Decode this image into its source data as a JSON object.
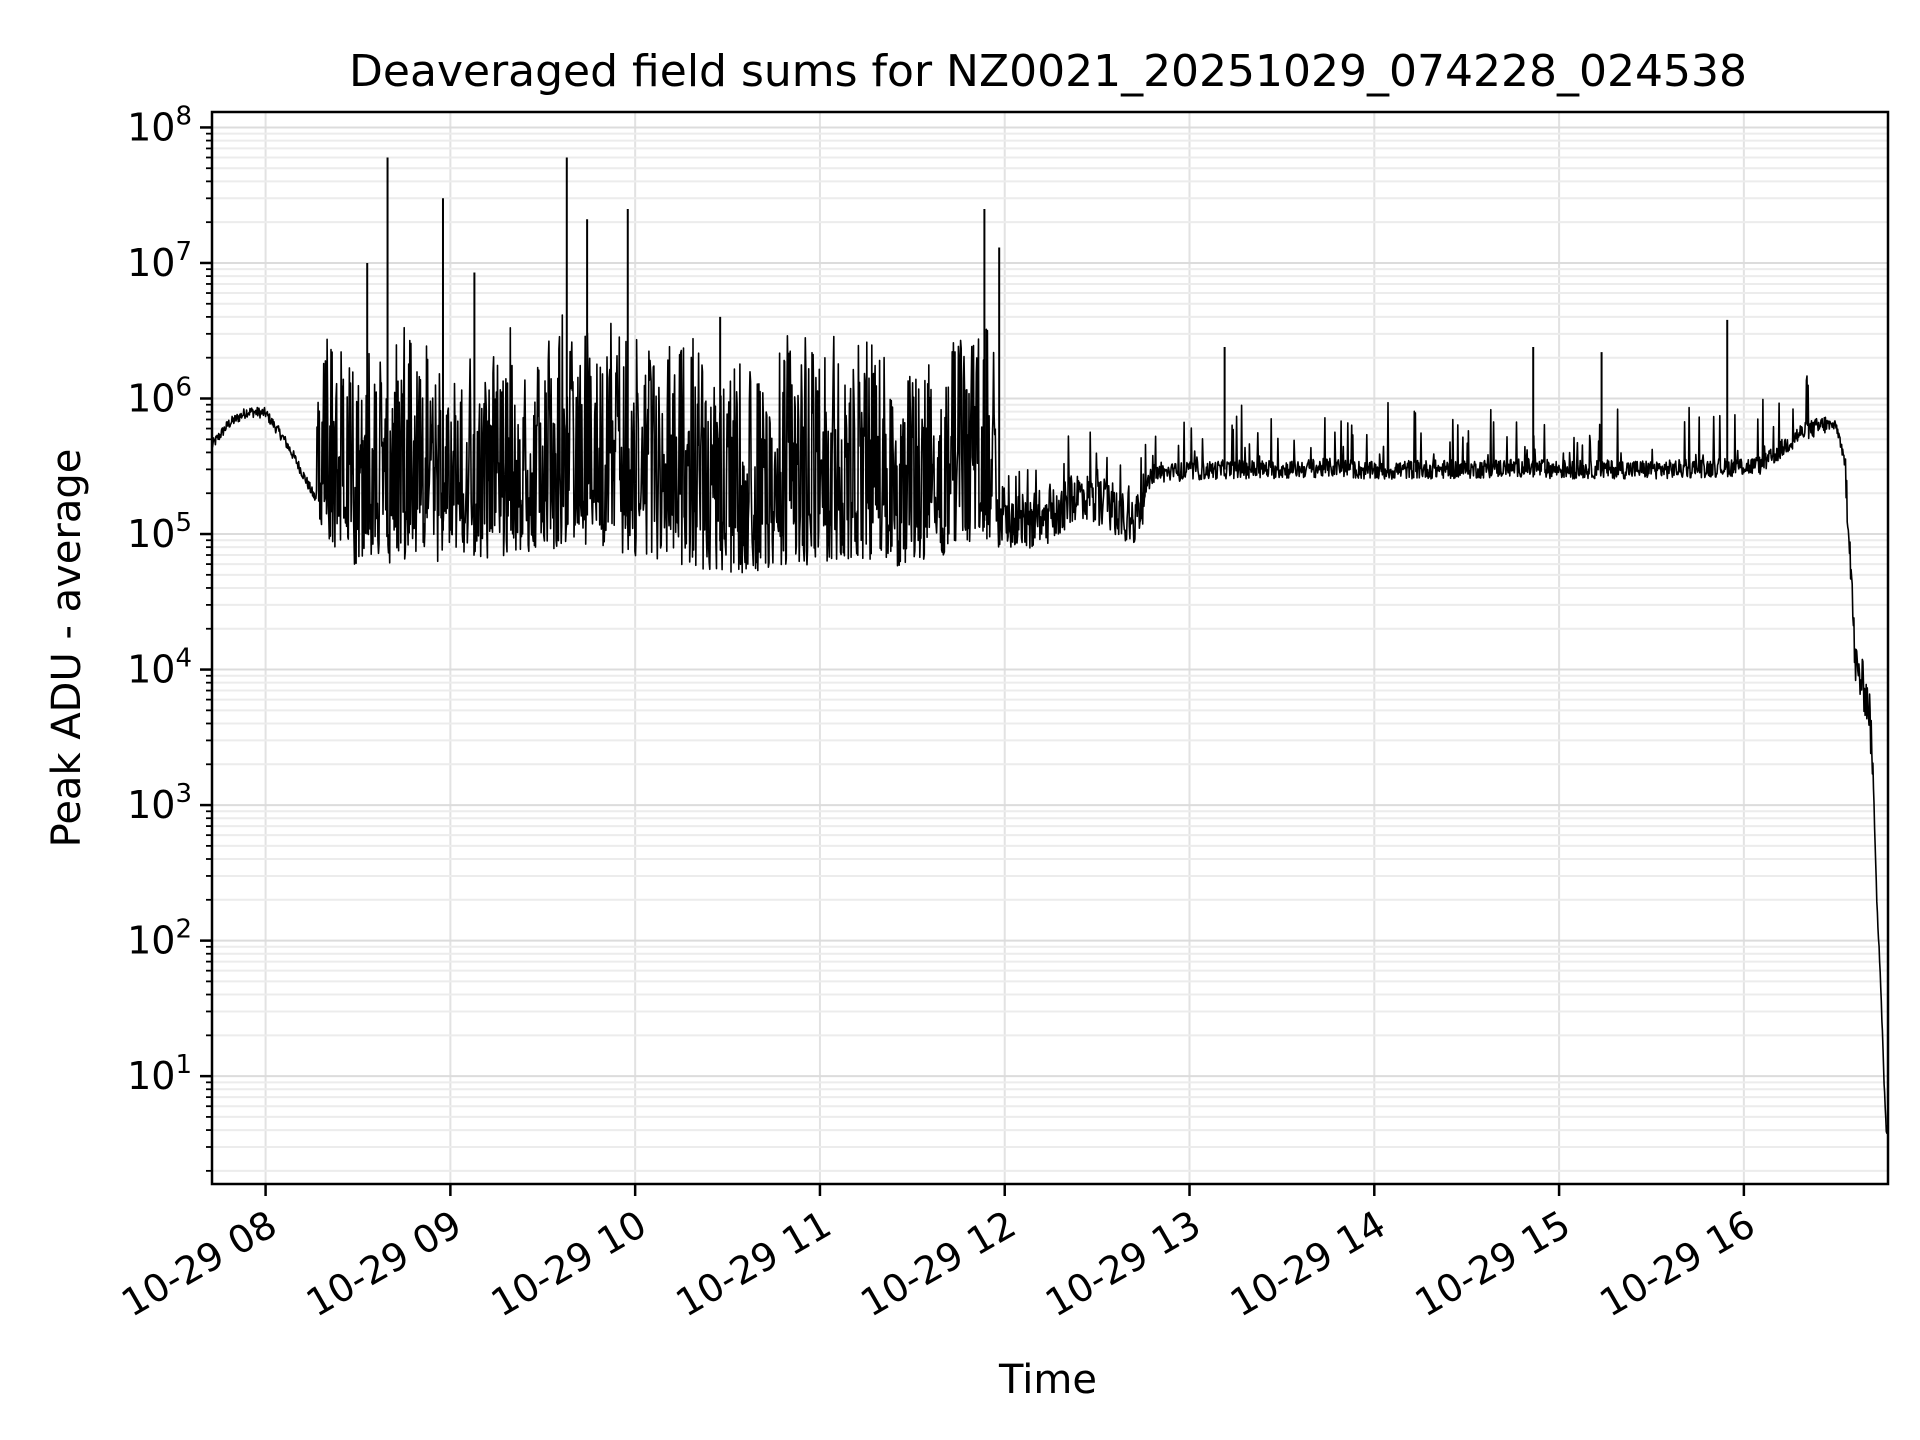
{
  "chart_data": {
    "type": "line",
    "title": "Deaveraged field sums for NZ0021_20251029_074228_024538",
    "xlabel": "Time",
    "ylabel": "Peak ADU - average",
    "yscale": "log",
    "ylim": [
      1.6,
      130000000
    ],
    "xlim_hours": [
      7.71,
      16.78
    ],
    "grid": true,
    "x_tick_labels": [
      "10-29 08",
      "10-29 09",
      "10-29 10",
      "10-29 11",
      "10-29 12",
      "10-29 13",
      "10-29 14",
      "10-29 15",
      "10-29 16"
    ],
    "x_tick_hours": [
      8,
      9,
      10,
      11,
      12,
      13,
      14,
      15,
      16
    ],
    "y_tick_base": "10",
    "y_tick_exponents": [
      "1",
      "2",
      "3",
      "4",
      "5",
      "6",
      "7",
      "8"
    ],
    "series": [
      {
        "name": "Peak ADU - average",
        "color": "#000000",
        "hours": [
          7.71,
          7.8,
          7.9,
          8.0,
          8.1,
          8.15,
          8.2,
          8.3,
          8.4,
          8.5,
          8.6,
          8.7,
          8.8,
          8.9,
          9.0,
          9.2,
          9.4,
          9.6,
          9.8,
          10.0,
          10.2,
          10.4,
          10.6,
          10.8,
          11.0,
          11.2,
          11.4,
          11.6,
          11.8,
          12.0,
          12.2,
          12.4,
          12.6,
          12.7,
          12.8,
          13.0,
          13.2,
          13.5,
          13.8,
          14.0,
          14.2,
          14.5,
          14.8,
          15.0,
          15.3,
          15.6,
          15.9,
          16.1,
          16.3,
          16.45,
          16.5,
          16.52,
          16.55,
          16.58,
          16.6,
          16.62,
          16.64,
          16.66,
          16.68,
          16.7,
          16.72,
          16.74,
          16.76,
          16.77,
          16.78
        ],
        "values": [
          450000,
          650000,
          800000,
          780000,
          500000,
          380000,
          280000,
          150000,
          100000,
          90000,
          110000,
          95000,
          120000,
          100000,
          110000,
          105000,
          120000,
          130000,
          140000,
          110000,
          100000,
          90000,
          85000,
          95000,
          100000,
          110000,
          95000,
          110000,
          130000,
          120000,
          110000,
          200000,
          150000,
          120000,
          280000,
          290000,
          300000,
          300000,
          310000,
          290000,
          300000,
          300000,
          310000,
          300000,
          300000,
          300000,
          310000,
          320000,
          550000,
          650000,
          620000,
          500000,
          300000,
          60000,
          12000,
          9000,
          8000,
          6500,
          5000,
          1500,
          200,
          50,
          8,
          4,
          4
        ]
      }
    ],
    "annotations": {
      "spike_hours": [
        8.55,
        8.66,
        8.96,
        9.13,
        9.63,
        9.74,
        9.96,
        10.46,
        11.89,
        11.97,
        13.19,
        14.86,
        15.23,
        15.91
      ],
      "spike_values": [
        10000000,
        60000000,
        30000000,
        8500000,
        60000000,
        21000000,
        25000000,
        4000000,
        25000000,
        13000000,
        2400000,
        2400000,
        2200000,
        3800000
      ]
    }
  }
}
